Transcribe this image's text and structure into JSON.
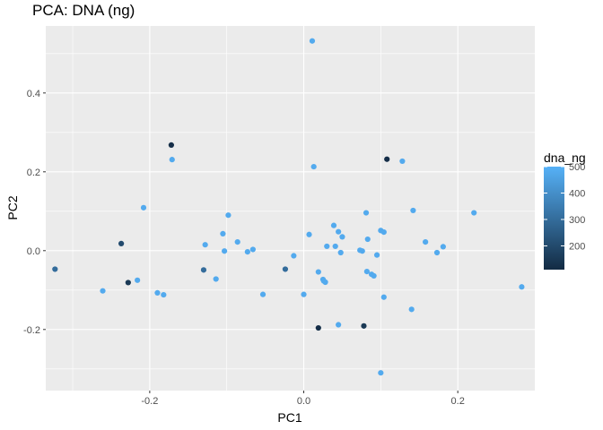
{
  "chart_data": {
    "type": "scatter",
    "title": "PCA: DNA (ng)",
    "xlabel": "PC1",
    "ylabel": "PC2",
    "xlim": [
      -0.335,
      0.3
    ],
    "ylim": [
      -0.355,
      0.57
    ],
    "xticks": [
      -0.2,
      0.0,
      0.2
    ],
    "xtick_labels": [
      "-0.2",
      "0.0",
      "0.2"
    ],
    "yticks": [
      -0.2,
      0.0,
      0.2,
      0.4
    ],
    "ytick_labels": [
      "-0.2",
      "0.0",
      "0.2",
      "0.4"
    ],
    "grid": true,
    "legend": {
      "title": "dna_ng",
      "placement": "right",
      "min": 110,
      "max": 500,
      "breaks": [
        200,
        300,
        400,
        500
      ],
      "break_labels": [
        "200",
        "300",
        "400",
        "500"
      ],
      "color_low": "#132B43",
      "color_high": "#56B1F7"
    },
    "points": [
      {
        "x": 0.011,
        "y": 0.532,
        "c": 480
      },
      {
        "x": -0.172,
        "y": 0.268,
        "c": 120
      },
      {
        "x": -0.171,
        "y": 0.231,
        "c": 480
      },
      {
        "x": 0.108,
        "y": 0.232,
        "c": 120
      },
      {
        "x": 0.128,
        "y": 0.227,
        "c": 480
      },
      {
        "x": 0.013,
        "y": 0.213,
        "c": 480
      },
      {
        "x": -0.208,
        "y": 0.109,
        "c": 480
      },
      {
        "x": 0.142,
        "y": 0.102,
        "c": 480
      },
      {
        "x": 0.221,
        "y": 0.096,
        "c": 480
      },
      {
        "x": 0.081,
        "y": 0.096,
        "c": 480
      },
      {
        "x": -0.098,
        "y": 0.09,
        "c": 480
      },
      {
        "x": 0.039,
        "y": 0.064,
        "c": 480
      },
      {
        "x": 0.1,
        "y": 0.051,
        "c": 480
      },
      {
        "x": 0.104,
        "y": 0.047,
        "c": 480
      },
      {
        "x": -0.105,
        "y": 0.043,
        "c": 480
      },
      {
        "x": 0.045,
        "y": 0.048,
        "c": 480
      },
      {
        "x": 0.007,
        "y": 0.041,
        "c": 480
      },
      {
        "x": 0.05,
        "y": 0.035,
        "c": 480
      },
      {
        "x": 0.083,
        "y": 0.029,
        "c": 480
      },
      {
        "x": -0.237,
        "y": 0.018,
        "c": 200
      },
      {
        "x": 0.158,
        "y": 0.022,
        "c": 480
      },
      {
        "x": -0.086,
        "y": 0.022,
        "c": 480
      },
      {
        "x": -0.128,
        "y": 0.015,
        "c": 480
      },
      {
        "x": 0.03,
        "y": 0.011,
        "c": 480
      },
      {
        "x": 0.041,
        "y": 0.011,
        "c": 480
      },
      {
        "x": 0.181,
        "y": 0.01,
        "c": 480
      },
      {
        "x": -0.066,
        "y": 0.003,
        "c": 480
      },
      {
        "x": 0.073,
        "y": 0.001,
        "c": 480
      },
      {
        "x": 0.076,
        "y": -0.001,
        "c": 480
      },
      {
        "x": -0.103,
        "y": -0.001,
        "c": 480
      },
      {
        "x": -0.073,
        "y": -0.003,
        "c": 480
      },
      {
        "x": 0.048,
        "y": -0.005,
        "c": 480
      },
      {
        "x": 0.173,
        "y": -0.005,
        "c": 480
      },
      {
        "x": 0.095,
        "y": -0.011,
        "c": 480
      },
      {
        "x": -0.013,
        "y": -0.013,
        "c": 480
      },
      {
        "x": -0.323,
        "y": -0.047,
        "c": 300
      },
      {
        "x": -0.13,
        "y": -0.049,
        "c": 300
      },
      {
        "x": -0.024,
        "y": -0.047,
        "c": 300
      },
      {
        "x": 0.082,
        "y": -0.053,
        "c": 480
      },
      {
        "x": 0.019,
        "y": -0.054,
        "c": 480
      },
      {
        "x": 0.088,
        "y": -0.06,
        "c": 480
      },
      {
        "x": 0.091,
        "y": -0.064,
        "c": 480
      },
      {
        "x": -0.114,
        "y": -0.072,
        "c": 480
      },
      {
        "x": -0.216,
        "y": -0.075,
        "c": 480
      },
      {
        "x": 0.025,
        "y": -0.073,
        "c": 480
      },
      {
        "x": 0.026,
        "y": -0.077,
        "c": 480
      },
      {
        "x": 0.028,
        "y": -0.08,
        "c": 480
      },
      {
        "x": -0.228,
        "y": -0.081,
        "c": 150
      },
      {
        "x": 0.283,
        "y": -0.092,
        "c": 480
      },
      {
        "x": -0.261,
        "y": -0.102,
        "c": 480
      },
      {
        "x": -0.19,
        "y": -0.107,
        "c": 480
      },
      {
        "x": -0.182,
        "y": -0.112,
        "c": 480
      },
      {
        "x": -0.053,
        "y": -0.111,
        "c": 480
      },
      {
        "x": 0.0,
        "y": -0.111,
        "c": 480
      },
      {
        "x": 0.104,
        "y": -0.118,
        "c": 480
      },
      {
        "x": 0.14,
        "y": -0.149,
        "c": 480
      },
      {
        "x": 0.045,
        "y": -0.188,
        "c": 480
      },
      {
        "x": 0.078,
        "y": -0.191,
        "c": 150
      },
      {
        "x": 0.019,
        "y": -0.196,
        "c": 120
      },
      {
        "x": 0.1,
        "y": -0.31,
        "c": 480
      }
    ]
  }
}
